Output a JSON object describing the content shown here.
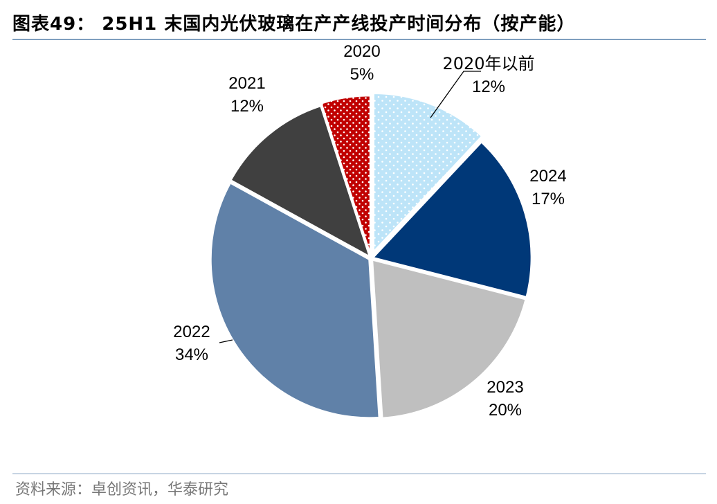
{
  "header": {
    "title": "图表49： 25H1 末国内光伏玻璃在产产线投产时间分布（按产能）"
  },
  "footer": {
    "source": "资料来源：卓创资讯，华泰研究"
  },
  "chart_data": {
    "type": "pie",
    "title": "图表49： 25H1 末国内光伏玻璃在产产线投产时间分布（按产能）",
    "slices": [
      {
        "name": "2020年以前",
        "value": 12,
        "label": "12%",
        "color": "#bde4f8",
        "pattern": "dots-white"
      },
      {
        "name": "2024",
        "value": 17,
        "label": "17%",
        "color": "#003878"
      },
      {
        "name": "2023",
        "value": 20,
        "label": "20%",
        "color": "#bfbfbf"
      },
      {
        "name": "2022",
        "value": 34,
        "label": "34%",
        "color": "#6081a8"
      },
      {
        "name": "2021",
        "value": 12,
        "label": "12%",
        "color": "#404040"
      },
      {
        "name": "2020",
        "value": 5,
        "label": "5%",
        "color": "#c00000",
        "pattern": "dots-white"
      }
    ],
    "start": "12 o'clock",
    "direction": "clockwise"
  }
}
